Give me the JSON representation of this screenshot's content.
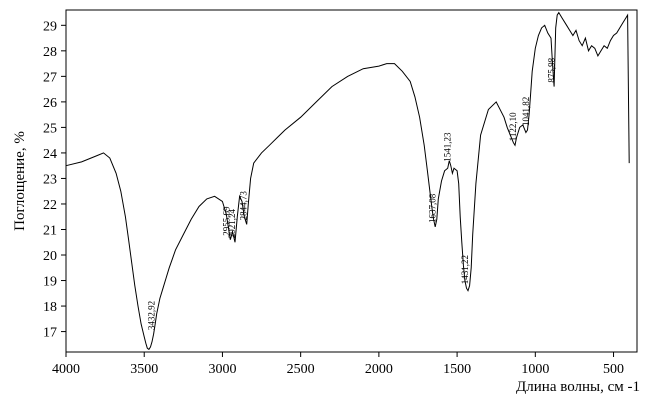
{
  "chart_data": {
    "type": "line",
    "title": "",
    "xlabel": "Длина волны, см -1",
    "ylabel": "Поглощение, %",
    "xlim": [
      4000,
      350
    ],
    "ylim": [
      16.2,
      29.6
    ],
    "x_inverted": true,
    "grid": false,
    "legend": "none",
    "line_color": "#000000",
    "x_ticks": [
      {
        "value": 4000,
        "label": "4000"
      },
      {
        "value": 3500,
        "label": "3500"
      },
      {
        "value": 3000,
        "label": "3000"
      },
      {
        "value": 2500,
        "label": "2500"
      },
      {
        "value": 2000,
        "label": "2000"
      },
      {
        "value": 1500,
        "label": "1500"
      },
      {
        "value": 1000,
        "label": "1000"
      },
      {
        "value": 500,
        "label": "500"
      }
    ],
    "y_ticks": [
      {
        "value": 17,
        "label": "17"
      },
      {
        "value": 18,
        "label": "18"
      },
      {
        "value": 19,
        "label": "19"
      },
      {
        "value": 20,
        "label": "20"
      },
      {
        "value": 21,
        "label": "21"
      },
      {
        "value": 22,
        "label": "22"
      },
      {
        "value": 23,
        "label": "23"
      },
      {
        "value": 24,
        "label": "24"
      },
      {
        "value": 25,
        "label": "25"
      },
      {
        "value": 26,
        "label": "26"
      },
      {
        "value": 27,
        "label": "27"
      },
      {
        "value": 28,
        "label": "28"
      },
      {
        "value": 29,
        "label": "29"
      }
    ],
    "annotations": [
      {
        "label": "3432,92",
        "x": 3432.92,
        "y": 16.9
      },
      {
        "label": "2955,69",
        "x": 2955.69,
        "y": 20.6
      },
      {
        "label": "2921,24",
        "x": 2921.24,
        "y": 20.5
      },
      {
        "label": "2844,73",
        "x": 2844.73,
        "y": 21.2
      },
      {
        "label": "1637,08",
        "x": 1637.08,
        "y": 21.1
      },
      {
        "label": "1541,23",
        "x": 1541.23,
        "y": 23.5
      },
      {
        "label": "1431,22",
        "x": 1431.22,
        "y": 18.7
      },
      {
        "label": "1122,10",
        "x": 1122.1,
        "y": 24.3
      },
      {
        "label": "1041,82",
        "x": 1041.82,
        "y": 24.9
      },
      {
        "label": "875,98",
        "x": 875.98,
        "y": 26.6
      }
    ],
    "series": [
      {
        "x": [
          4000,
          3900,
          3800,
          3760,
          3720,
          3680,
          3650,
          3620,
          3600,
          3580,
          3560,
          3540,
          3520,
          3500,
          3490,
          3480,
          3470,
          3460,
          3450,
          3440,
          3430,
          3420,
          3400,
          3380,
          3360,
          3340,
          3320,
          3300,
          3250,
          3200,
          3150,
          3100,
          3050,
          3000,
          2975,
          2960,
          2950,
          2935,
          2920,
          2905,
          2890,
          2875,
          2860,
          2845,
          2835,
          2820,
          2800,
          2750,
          2700,
          2650,
          2600,
          2500,
          2400,
          2300,
          2200,
          2100,
          2000,
          1950,
          1900,
          1850,
          1800,
          1770,
          1740,
          1710,
          1690,
          1670,
          1660,
          1650,
          1640,
          1630,
          1620,
          1600,
          1580,
          1560,
          1550,
          1540,
          1530,
          1520,
          1500,
          1490,
          1480,
          1470,
          1460,
          1450,
          1440,
          1430,
          1420,
          1410,
          1400,
          1380,
          1350,
          1300,
          1250,
          1200,
          1180,
          1160,
          1140,
          1130,
          1120,
          1110,
          1100,
          1080,
          1060,
          1050,
          1040,
          1030,
          1020,
          1000,
          980,
          960,
          940,
          920,
          900,
          890,
          880,
          870,
          860,
          850,
          830,
          800,
          780,
          760,
          740,
          720,
          700,
          680,
          660,
          640,
          620,
          600,
          580,
          560,
          540,
          520,
          500,
          480,
          460,
          440,
          420,
          410,
          400
        ],
        "y": [
          23.5,
          23.65,
          23.9,
          24.0,
          23.8,
          23.2,
          22.5,
          21.5,
          20.6,
          19.7,
          18.8,
          18.0,
          17.3,
          16.8,
          16.55,
          16.35,
          16.3,
          16.4,
          16.6,
          16.9,
          17.3,
          17.7,
          18.3,
          18.7,
          19.1,
          19.5,
          19.85,
          20.2,
          20.8,
          21.4,
          21.9,
          22.2,
          22.3,
          22.1,
          21.6,
          21.0,
          20.6,
          20.9,
          20.5,
          21.5,
          22.3,
          22.1,
          21.5,
          21.2,
          22.0,
          23.0,
          23.6,
          24.0,
          24.3,
          24.6,
          24.9,
          25.4,
          26.0,
          26.6,
          27.0,
          27.3,
          27.4,
          27.5,
          27.5,
          27.2,
          26.8,
          26.2,
          25.4,
          24.3,
          23.3,
          22.3,
          21.8,
          21.4,
          21.1,
          21.4,
          22.2,
          22.9,
          23.3,
          23.4,
          23.7,
          23.5,
          23.2,
          23.4,
          23.3,
          22.8,
          21.5,
          20.5,
          19.6,
          19.0,
          18.7,
          18.6,
          18.8,
          19.5,
          20.8,
          22.8,
          24.7,
          25.7,
          26.0,
          25.4,
          25.0,
          24.7,
          24.4,
          24.3,
          24.6,
          24.8,
          25.0,
          25.1,
          24.8,
          24.9,
          25.5,
          26.3,
          27.2,
          28.1,
          28.6,
          28.9,
          29.0,
          28.7,
          28.5,
          27.5,
          26.6,
          28.9,
          29.4,
          29.5,
          29.3,
          29.0,
          28.8,
          28.6,
          28.8,
          28.4,
          28.2,
          28.5,
          28.0,
          28.2,
          28.1,
          27.8,
          28.0,
          28.2,
          28.1,
          28.4,
          28.6,
          28.7,
          28.9,
          29.1,
          29.3,
          29.4,
          23.6
        ]
      }
    ]
  }
}
